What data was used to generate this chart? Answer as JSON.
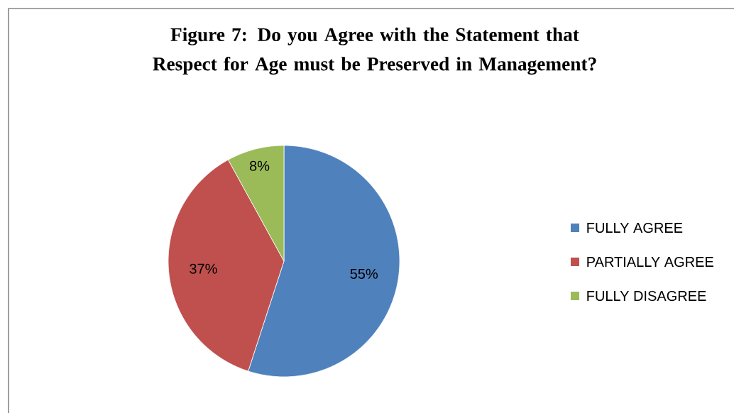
{
  "chart_data": {
    "type": "pie",
    "title": "Figure 7: Do you Agree with the Statement that Respect for Age must be Preserved in Management?",
    "categories": [
      "FULLY AGREE",
      "PARTIALLY AGREE",
      "FULLY DISAGREE"
    ],
    "values": [
      55,
      37,
      8
    ],
    "value_labels": [
      "55%",
      "37%",
      "8%"
    ],
    "colors": [
      "#4f81bd",
      "#c0504d",
      "#9bbb59"
    ],
    "legend": "right"
  }
}
